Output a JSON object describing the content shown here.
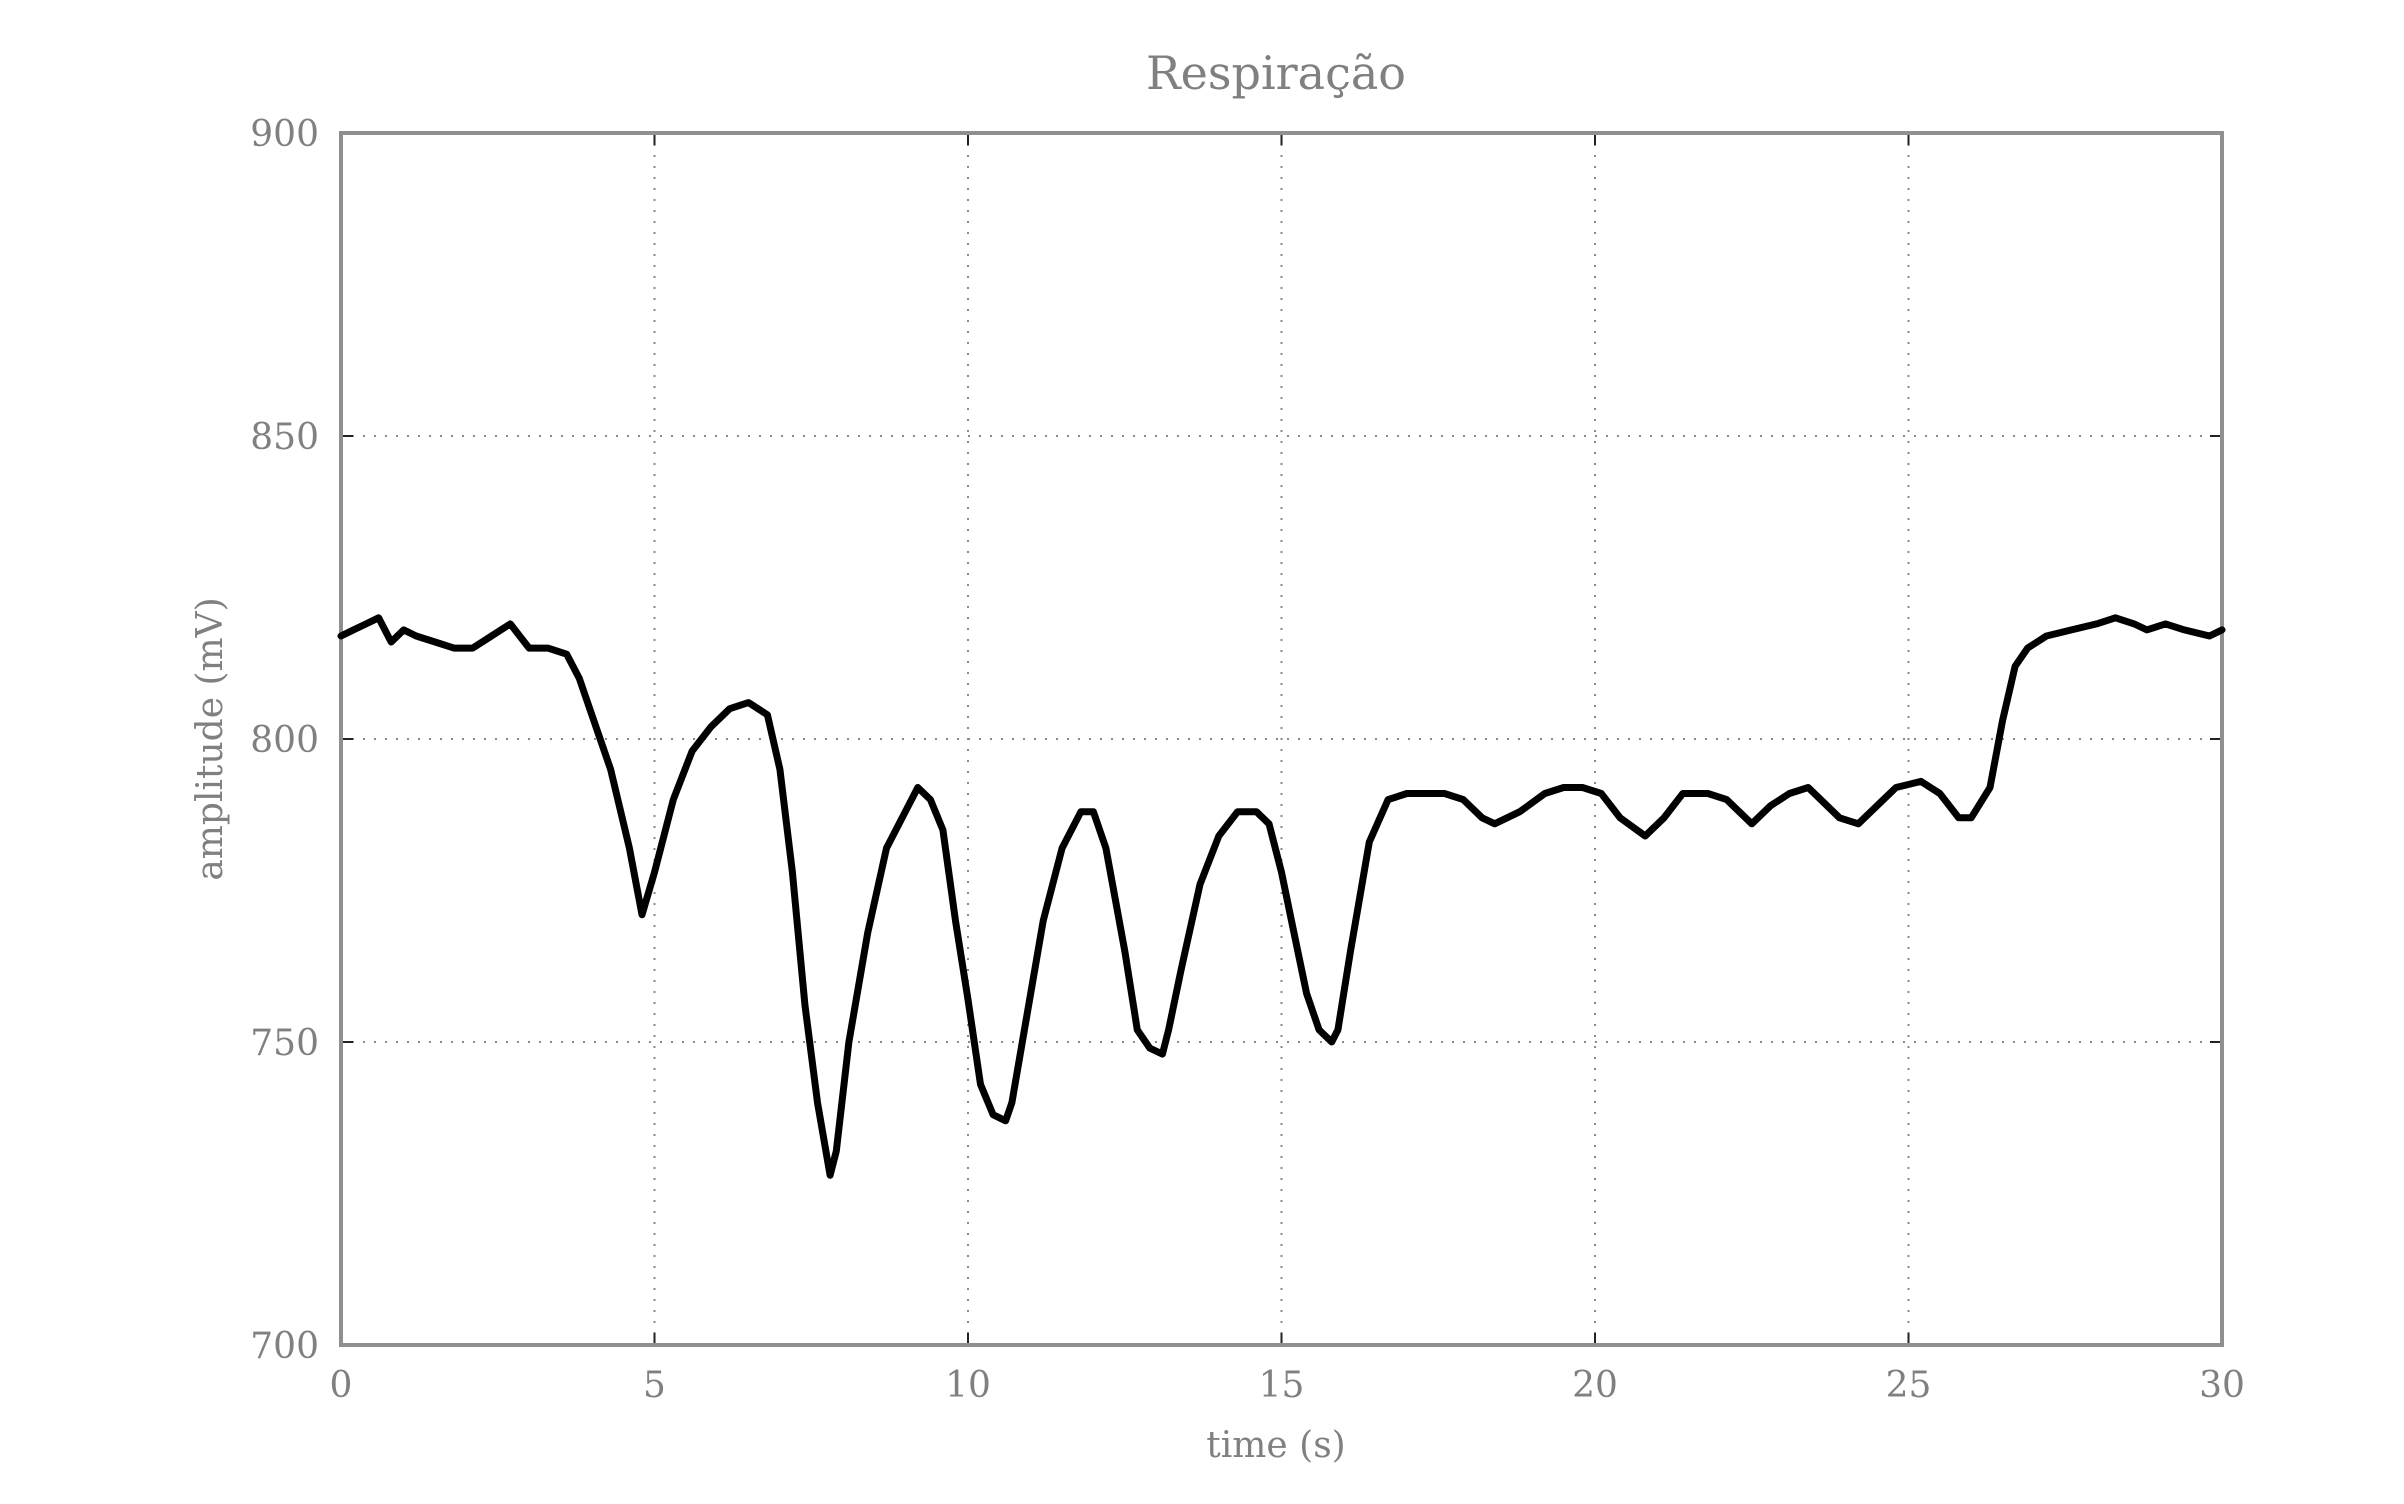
{
  "chart_data": {
    "type": "line",
    "title": "Respiração",
    "xlabel": "time (s)",
    "ylabel": "amplitude (mV)",
    "xlim": [
      0,
      30
    ],
    "ylim": [
      700,
      900
    ],
    "xticks": [
      0,
      5,
      10,
      15,
      20,
      25,
      30
    ],
    "yticks": [
      700,
      750,
      800,
      850,
      900
    ],
    "grid": true,
    "series": [
      {
        "color": "#000000",
        "x": [
          0,
          0.2,
          0.4,
          0.6,
          0.8,
          1.0,
          1.2,
          1.5,
          1.8,
          2.1,
          2.4,
          2.7,
          3.0,
          3.3,
          3.6,
          3.8,
          4.0,
          4.3,
          4.6,
          4.8,
          5.0,
          5.3,
          5.6,
          5.9,
          6.2,
          6.5,
          6.8,
          7.0,
          7.2,
          7.4,
          7.6,
          7.8,
          7.9,
          8.1,
          8.4,
          8.7,
          9.0,
          9.2,
          9.4,
          9.6,
          9.8,
          10.0,
          10.2,
          10.4,
          10.6,
          10.7,
          10.9,
          11.2,
          11.5,
          11.8,
          12.0,
          12.2,
          12.5,
          12.7,
          12.9,
          13.1,
          13.2,
          13.4,
          13.7,
          14.0,
          14.3,
          14.6,
          14.8,
          15.0,
          15.2,
          15.4,
          15.6,
          15.8,
          15.9,
          16.1,
          16.4,
          16.7,
          17.0,
          17.3,
          17.6,
          17.9,
          18.2,
          18.4,
          18.8,
          19.2,
          19.5,
          19.8,
          20.1,
          20.4,
          20.8,
          21.1,
          21.4,
          21.8,
          22.1,
          22.3,
          22.5,
          22.8,
          23.1,
          23.4,
          23.7,
          23.9,
          24.2,
          24.5,
          24.8,
          25.2,
          25.5,
          25.8,
          26.0,
          26.3,
          26.5,
          26.7,
          26.9,
          27.2,
          27.6,
          28.0,
          28.3,
          28.6,
          28.8,
          29.1,
          29.4,
          29.8,
          30.0
        ],
        "values": [
          817,
          818,
          819,
          820,
          816,
          818,
          817,
          816,
          815,
          815,
          817,
          819,
          815,
          815,
          814,
          810,
          804,
          795,
          782,
          771,
          778,
          790,
          798,
          802,
          805,
          806,
          804,
          795,
          778,
          756,
          740,
          728,
          732,
          750,
          768,
          782,
          788,
          792,
          790,
          785,
          770,
          757,
          743,
          738,
          737,
          740,
          752,
          770,
          782,
          788,
          788,
          782,
          765,
          752,
          749,
          748,
          752,
          762,
          776,
          784,
          788,
          788,
          786,
          778,
          768,
          758,
          752,
          750,
          752,
          765,
          783,
          790,
          791,
          791,
          791,
          790,
          787,
          786,
          788,
          791,
          792,
          792,
          791,
          787,
          784,
          787,
          791,
          791,
          790,
          788,
          786,
          789,
          791,
          792,
          789,
          787,
          786,
          789,
          792,
          793,
          791,
          787,
          787,
          792,
          803,
          812,
          815,
          817,
          818,
          819,
          820,
          819,
          818,
          819,
          818,
          817,
          818
        ]
      }
    ]
  }
}
